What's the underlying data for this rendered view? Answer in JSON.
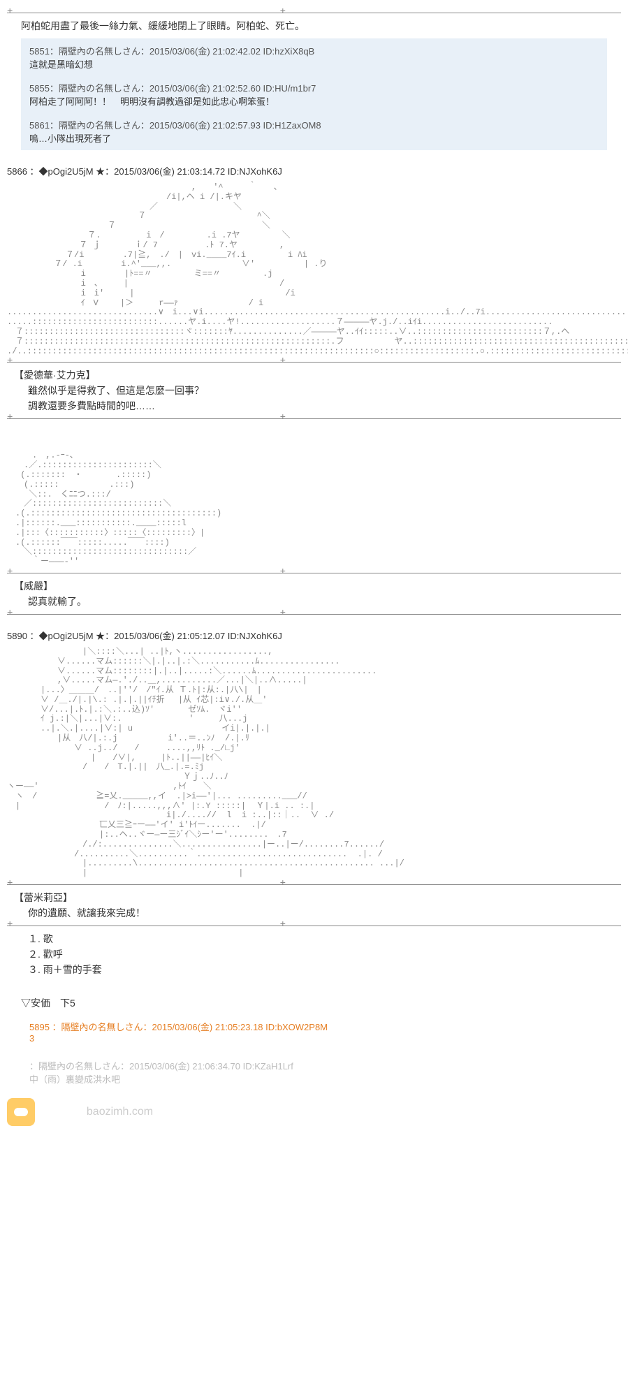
{
  "narration1": "阿柏蛇用盡了最後一絲力氣、緩緩地閉上了眼睛。阿柏蛇、死亡。",
  "comments": [
    {
      "no": "5851",
      "meta": "：隔壁內の名無しさん：2015/03/06(金) 21:02:42.02 ID:hzXiX8qB",
      "body": "這就是黑暗幻想"
    },
    {
      "no": "5855",
      "meta": "：隔壁內の名無しさん：2015/03/06(金) 21:02:52.60 ID:HU/m1br7",
      "body": "阿柏走了阿阿阿！！　明明沒有調教過卻是如此忠心啊笨蛋！"
    },
    {
      "no": "5861",
      "meta": "：隔壁內の名無しさん：2015/03/06(金) 21:02:57.93 ID:H1ZaxOM8",
      "body": "嗚…小隊出現死者了"
    }
  ],
  "post1": {
    "header": "5866 ：◆pOgi2U5jM ★：2015/03/06(金) 21:03:14.72 ID:NJXohK6J",
    "char": "【愛德華·艾力克】",
    "line1": "雖然似乎是得救了、但這是怎麼一回事？",
    "line2": "調教還要多費點時間的吧……"
  },
  "post2": {
    "char": "【威嚴】",
    "line1": "認真就輸了。"
  },
  "post3": {
    "header": "5890 ：◆pOgi2U5jM ★：2015/03/06(金) 21:05:12.07 ID:NJXohK6J",
    "char": "【蕾米莉亞】",
    "line1": "你的遺願、就讓我來完成！"
  },
  "choices": {
    "c1": "１. 歌",
    "c2": "２. 歡呼",
    "c3": "３. 雨＋雪的手套"
  },
  "ankka": "▽安価　下5",
  "reply_hl": {
    "meta": "5895 ：隔壁內の名無しさん：2015/03/06(金) 21:05:23.18 ID:bXOW2P8M",
    "body": "3"
  },
  "reply_grey": {
    "meta": "：隔壁內の名無しさん：2015/03/06(金) 21:06:34.70 ID:KZaH1Lrf",
    "body": "中（雨）裏變成洪水吧"
  },
  "wm": "baozimh.com",
  "ascii1": "　　　　　　　　　　　　　　　　　　　　　　,　　'^　　　｀　　、\n　　　　　　　　　　　　　　　　　　　/i|,ヘ i /|.キヤ\n　　　　　　　　　　　　　　　　　／　　　　　　　　　＼\n　　　　　　　　　　　　　　　 ７　　　　　　　　　　　　  ^＼\n　　　　　　　　　　　　７　　　　 　 　 　 　 　 　 　 　 ＼\n　　　　　　　　　 ７. 　 　 　 i　/　　　　　.i .7ヤ　　　　　＼\n　　　　　　　　 ７ ｊ　　　　ｉ/ 7　　　 　　.ﾄ 7.ヤ　　　　　,\n　　　　　　　７/i　　　　 .7|≧,　./　|　vi.____7ｲ.i　　　　　i ﾊi\n　　　　　 ７/ .i　　　　 i.^'___,,.　　　 　 　 　 ∨'　　 　 　 | .り\n　　　　　 　 　 i　　　　 |ﾄ==〃　　　　　ミ==〃　　　　　.j\n　　　　　 　 　 i　、　　　|　　　　　　　　　　　 　 　 　 　 /\n　　　　　 　 　 i　i'　　　|　　　　　　　　　　　 　 　 　 　 /i\n　　　　　 　 　 ｲ　V　　 |＞　　　r――ｧ　　　 　 　 　 / i\n..............................∨　i...∨i................................................i../..7i.............................\n.....:::::::::::::::::::::::::......ヤ.i....ヤ!...................７―――――ヤ.j./..iｲi..........................\n　７::::::::::::::::::::::::::::::::ヾ:::::::ﾔ..............／―――――ヤ..ｲｲ:::::..∨..:::::::::::::::::::::::::７,.へ\n　７:::::::::::::::::::::::::::::::::::::::::::::::::::::::::::::.フ　　　　　　ヤ..:::::::::::::::::::::::::::::::::::::::::::::::::/ | i\n./..:::::::::::::::::::::::::::::::::::::::::::::::::::::::::::::::::::::○:::::::::::::::::::.○.::::::::::::::::::::::::::::::::::::::::::::::::::::::::::::/ | |",
  "ascii2": "　　　.　,.-ｰ-､\n　　.／.::::::::::::::::::::::＼\n　 (.:::::::　・　　　　.:::::)\n　　(.:::::　　　　　　.:::)\n　　 ＼::.　くﾆﾆつ.:::/\n　　／::::::::::::::::::::::::::＼\n　.(.:::::::::::::::::::::::::::::::::::::)\n　.|::::::.___:::::::::::.____:::::l\n　.|:::〈:::::::::::〉:::::〈:::::::::〉|\n　.(.::::::￣￣:::::.....￣￣::::)\n　　＼:::::::::::::::::::::::::::::::／\n　　　｀ー―――‐''",
  "ascii3": "　　　　　　　　　|＼::::＼...| ..|ﾄ,ヽ.................,\n　　　　　　∨......マム::::::＼|.|..|.:＼...........ﾑ................\n　　　　　　∨......マム::::::::|.|..|.....:＼......ﾑ........................\n　　　　　　,∨.....マム―.'./..＿,...........／...|＼|..∧.....|\n　　　　|...〉＿＿＿/　..|''/　/\"ｲ.从 Ｔ.ﾄ|:从:.|八\\|　|\n　　　　∨ /＿./|.|\\.: .|.|.||ｲﾁ折 　|从 ｲ芯|:i∨./.从＿'\n　　　　∨/...|.ﾄ.|.:＼.:..込)ｿ'　　　　ゼｿﾑ.　ヾi''\n　　　　ｲ j.:|＼|...|∨:.　　　　　　　　'　　　八...j\n　　　　..|.＼.|....|∨:| u　　　　　　　　　　 イi|.|.|.|\n　　　　　　|从　八/|.:.j　　　　　　i'..＝..ﾝﾉ  /.|.ﾘ\n　　　　　　　　∨ ..j../　　/ 　　 ....,,ﾘﾄ ._/∟j'\n　　　　　　　　　　|　　/∨|,　　　|ﾄ..||――|ﾋｲ＼\n　　　　　　　　　/　　/　T.|.||　八_.|.=.ﾐj\n　　　　　　　　　　　　　　　　　　　　　Ｙｊ..ﾉ..ﾉ\nヽー――'　　　　　　　　　　　　　　　　,ﾄｲ　　＼\n　ヽ　/　　　　　　　≧=乂._____,,イ  .|>i――'|... .........___//\n　|　　　　　　　　　　/　ﾉ:|.....,,,∧' |:.Y :::::|  Ｙ|.i .. :.|\n　　　　　　　　　　　　　　　　　　　i|./....//  l  i :..|::｜..  ∨ ./\n　　　　　　　　　　　匸乂三≧ｰー――'イ' i'ﾄｲー.......  .|/\n　　　　　　　　　　　|:..ヘ..ヾー―ー三ｼﾞｲ＼ｼー'ー'........　.7\n　　　　　　　　　/./:..............＼................|ー..|ー/........7....../\n　　　　　　　　/..........＼..........｀..............................  .|. /\n　　　　　　　　　|.........\\............................................... ...|/\n　　　　　　　　　|　　　　　　　　　　　　　　　　　　|"
}
